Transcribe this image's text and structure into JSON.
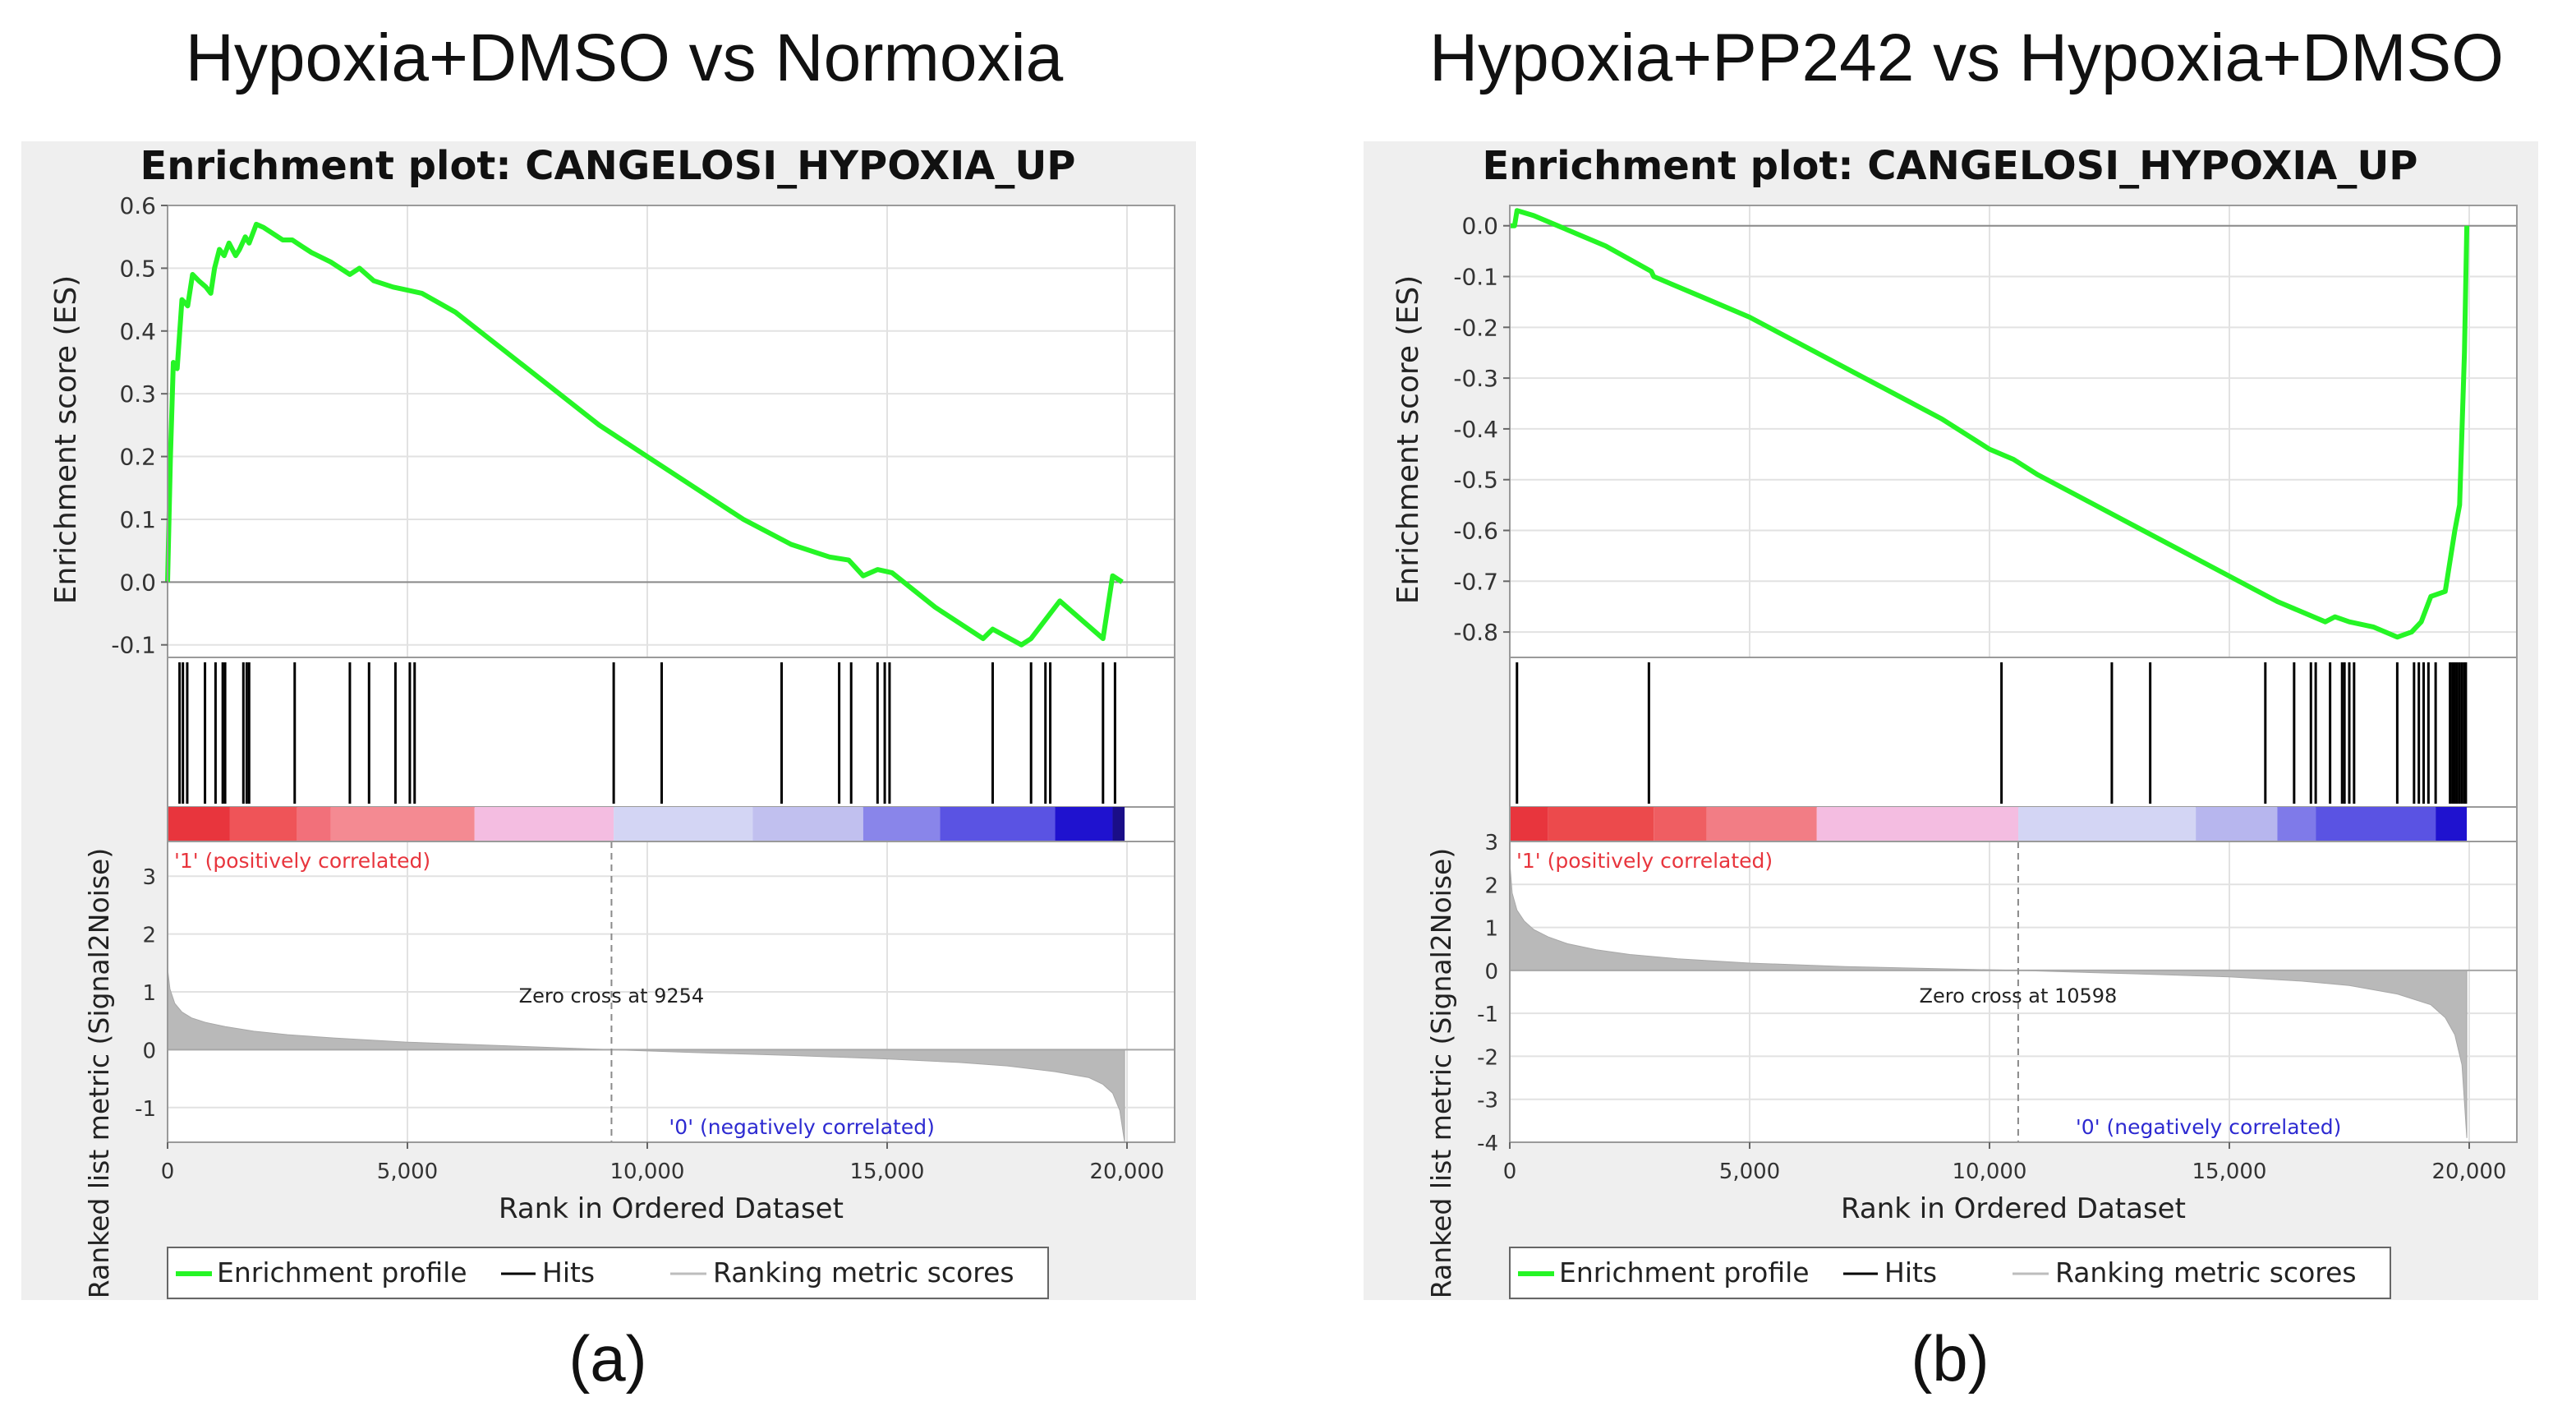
{
  "chart_data": [
    {
      "type": "line",
      "panel_caption": "(a)",
      "comparison_title": "Hypoxia+DMSO vs Normoxia",
      "title": "Enrichment plot: CANGELOSI_HYPOXIA_UP",
      "ylabel_top": "Enrichment score (ES)",
      "ylabel_bottom": "Ranked list metric (Signal2Noise)",
      "xlabel": "Rank in Ordered Dataset",
      "xlim": [
        0,
        20000
      ],
      "x_ticks": [
        0,
        5000,
        10000,
        15000,
        20000
      ],
      "x_tick_labels": [
        "0",
        "5,000",
        "10,000",
        "15,000",
        "20,000"
      ],
      "es_ylim": [
        -0.12,
        0.6
      ],
      "es_ticks": [
        -0.1,
        0.0,
        0.1,
        0.2,
        0.3,
        0.4,
        0.5,
        0.6
      ],
      "es_tick_labels": [
        "-0.1",
        "0.0",
        "0.1",
        "0.2",
        "0.3",
        "0.4",
        "0.5",
        "0.6"
      ],
      "metric_ylim": [
        -1.6,
        3.6
      ],
      "metric_ticks": [
        -1,
        0,
        1,
        2,
        3
      ],
      "metric_tick_labels": [
        "-1",
        "0",
        "1",
        "2",
        "3"
      ],
      "es_curve": {
        "x": [
          0,
          60,
          120,
          200,
          300,
          420,
          520,
          650,
          800,
          900,
          980,
          1080,
          1180,
          1280,
          1420,
          1500,
          1620,
          1700,
          1850,
          2000,
          2200,
          2400,
          2600,
          2800,
          3000,
          3400,
          3800,
          4000,
          4300,
          4700,
          5000,
          5300,
          6000,
          7000,
          8000,
          9000,
          10000,
          11000,
          12000,
          13000,
          13800,
          14200,
          14500,
          14800,
          15100,
          16000,
          17000,
          17200,
          17800,
          18000,
          18300,
          18600,
          19500,
          19700,
          19900
        ],
        "y": [
          0.0,
          0.2,
          0.35,
          0.34,
          0.45,
          0.44,
          0.49,
          0.48,
          0.47,
          0.46,
          0.5,
          0.53,
          0.52,
          0.54,
          0.52,
          0.53,
          0.55,
          0.54,
          0.57,
          0.565,
          0.555,
          0.545,
          0.545,
          0.535,
          0.525,
          0.51,
          0.49,
          0.5,
          0.48,
          0.47,
          0.465,
          0.46,
          0.43,
          0.37,
          0.31,
          0.25,
          0.2,
          0.15,
          0.1,
          0.06,
          0.04,
          0.035,
          0.01,
          0.02,
          0.015,
          -0.04,
          -0.09,
          -0.075,
          -0.1,
          -0.09,
          -0.06,
          -0.03,
          -0.09,
          0.01,
          0.0
        ]
      },
      "hits": [
        250,
        320,
        410,
        780,
        1000,
        1150,
        1200,
        1580,
        1650,
        1700,
        2650,
        3800,
        4200,
        4750,
        5050,
        5150,
        9300,
        10300,
        12800,
        14000,
        14250,
        14800,
        14950,
        15050,
        17200,
        18000,
        18300,
        18400,
        19500,
        19750
      ],
      "heatmap_segments": [
        {
          "x0": 0,
          "x1": 1300,
          "color": "#e8353d"
        },
        {
          "x0": 1300,
          "x1": 2700,
          "color": "#ef5458"
        },
        {
          "x0": 2700,
          "x1": 3400,
          "color": "#f2707a"
        },
        {
          "x0": 3400,
          "x1": 6400,
          "color": "#f48a92"
        },
        {
          "x0": 6400,
          "x1": 9300,
          "color": "#f4bde1"
        },
        {
          "x0": 9300,
          "x1": 12200,
          "color": "#d3d5f4"
        },
        {
          "x0": 12200,
          "x1": 14500,
          "color": "#c1c0ef"
        },
        {
          "x0": 14500,
          "x1": 16100,
          "color": "#8985ea"
        },
        {
          "x0": 16100,
          "x1": 18500,
          "color": "#5a53e3"
        },
        {
          "x0": 18500,
          "x1": 19700,
          "color": "#1f12cf"
        },
        {
          "x0": 19700,
          "x1": 19950,
          "color": "#1a0e88"
        }
      ],
      "metric_curve": {
        "x": [
          0,
          50,
          150,
          300,
          500,
          800,
          1200,
          1800,
          2500,
          3500,
          5000,
          7000,
          9254,
          11000,
          13000,
          15000,
          16500,
          17500,
          18500,
          19200,
          19500,
          19700,
          19850,
          19950
        ],
        "y": [
          1.4,
          1.05,
          0.8,
          0.65,
          0.55,
          0.47,
          0.4,
          0.32,
          0.26,
          0.2,
          0.13,
          0.07,
          0.0,
          -0.05,
          -0.1,
          -0.16,
          -0.22,
          -0.28,
          -0.38,
          -0.48,
          -0.6,
          -0.75,
          -1.05,
          -1.6
        ]
      },
      "zero_cross_x": 9254,
      "zero_cross_label": "Zero cross at 9254",
      "pos_label": "'1' (positively correlated)",
      "neg_label": "'0' (negatively correlated)",
      "legend": [
        "Enrichment profile",
        "Hits",
        "Ranking metric scores"
      ],
      "colors": {
        "es": "#25f525",
        "hits": "#000000",
        "metric": "#b9b9b9",
        "pos": "#e8353d",
        "neg": "#2d2ad1"
      }
    },
    {
      "type": "line",
      "panel_caption": "(b)",
      "comparison_title": "Hypoxia+PP242 vs Hypoxia+DMSO",
      "title": "Enrichment plot: CANGELOSI_HYPOXIA_UP",
      "ylabel_top": "Enrichment score (ES)",
      "ylabel_bottom": "Ranked list metric (Signal2Noise)",
      "xlabel": "Rank in Ordered Dataset",
      "xlim": [
        0,
        20000
      ],
      "x_ticks": [
        0,
        5000,
        10000,
        15000,
        20000
      ],
      "x_tick_labels": [
        "0",
        "5,000",
        "10,000",
        "15,000",
        "20,000"
      ],
      "es_ylim": [
        -0.85,
        0.04
      ],
      "es_ticks": [
        -0.8,
        -0.7,
        -0.6,
        -0.5,
        -0.4,
        -0.3,
        -0.2,
        -0.1,
        0.0
      ],
      "es_tick_labels": [
        "-0.8",
        "-0.7",
        "-0.6",
        "-0.5",
        "-0.4",
        "-0.3",
        "-0.2",
        "-0.1",
        "0.0"
      ],
      "metric_ylim": [
        -4,
        3
      ],
      "metric_ticks": [
        -4,
        -3,
        -2,
        -1,
        0,
        1,
        2,
        3
      ],
      "metric_tick_labels": [
        "-4",
        "-3",
        "-2",
        "-1",
        "0",
        "1",
        "2",
        "3"
      ],
      "es_curve": {
        "x": [
          0,
          100,
          150,
          500,
          1000,
          2000,
          2950,
          3000,
          4000,
          5000,
          6000,
          7000,
          8000,
          9000,
          10000,
          10500,
          11000,
          12000,
          13000,
          14000,
          15000,
          16000,
          17000,
          17200,
          17500,
          18000,
          18500,
          18800,
          19000,
          19200,
          19500,
          19700,
          19800,
          19900,
          19950
        ],
        "y": [
          0.0,
          0.0,
          0.03,
          0.02,
          0.0,
          -0.04,
          -0.09,
          -0.1,
          -0.14,
          -0.18,
          -0.23,
          -0.28,
          -0.33,
          -0.38,
          -0.44,
          -0.46,
          -0.49,
          -0.54,
          -0.59,
          -0.64,
          -0.69,
          -0.74,
          -0.78,
          -0.77,
          -0.78,
          -0.79,
          -0.81,
          -0.8,
          -0.78,
          -0.73,
          -0.72,
          -0.6,
          -0.55,
          -0.25,
          0.0
        ]
      },
      "hits": [
        150,
        2900,
        10250,
        12550,
        13350,
        15750,
        16350,
        16700,
        16800,
        17100,
        17350,
        17400,
        17500,
        17600,
        18500,
        18850,
        18950,
        19050,
        19150,
        19300,
        19600,
        19650,
        19700,
        19750,
        19800,
        19850,
        19900,
        19930
      ],
      "heatmap_segments": [
        {
          "x0": 0,
          "x1": 800,
          "color": "#e8353d"
        },
        {
          "x0": 800,
          "x1": 3000,
          "color": "#ec4a4c"
        },
        {
          "x0": 3000,
          "x1": 4100,
          "color": "#ef5e62"
        },
        {
          "x0": 4100,
          "x1": 6400,
          "color": "#f27d85"
        },
        {
          "x0": 6400,
          "x1": 10600,
          "color": "#f4bde1"
        },
        {
          "x0": 10600,
          "x1": 14300,
          "color": "#d3d5f4"
        },
        {
          "x0": 14300,
          "x1": 16000,
          "color": "#b7b6ee"
        },
        {
          "x0": 16000,
          "x1": 16800,
          "color": "#7f7ae9"
        },
        {
          "x0": 16800,
          "x1": 19300,
          "color": "#5a53e3"
        },
        {
          "x0": 19300,
          "x1": 19950,
          "color": "#1f12cf"
        }
      ],
      "metric_curve": {
        "x": [
          0,
          50,
          150,
          300,
          500,
          800,
          1200,
          1800,
          2500,
          3500,
          5000,
          7000,
          10598,
          13000,
          15000,
          16500,
          17500,
          18500,
          19200,
          19500,
          19700,
          19850,
          19950
        ],
        "y": [
          2.5,
          1.8,
          1.4,
          1.15,
          0.95,
          0.78,
          0.62,
          0.48,
          0.37,
          0.27,
          0.17,
          0.09,
          0.0,
          -0.08,
          -0.15,
          -0.25,
          -0.35,
          -0.55,
          -0.8,
          -1.1,
          -1.5,
          -2.2,
          -3.9
        ]
      },
      "zero_cross_x": 10598,
      "zero_cross_label": "Zero cross at 10598",
      "pos_label": "'1' (positively correlated)",
      "neg_label": "'0' (negatively correlated)",
      "legend": [
        "Enrichment profile",
        "Hits",
        "Ranking metric scores"
      ],
      "colors": {
        "es": "#25f525",
        "hits": "#000000",
        "metric": "#b9b9b9",
        "pos": "#e8353d",
        "neg": "#2d2ad1"
      }
    }
  ]
}
